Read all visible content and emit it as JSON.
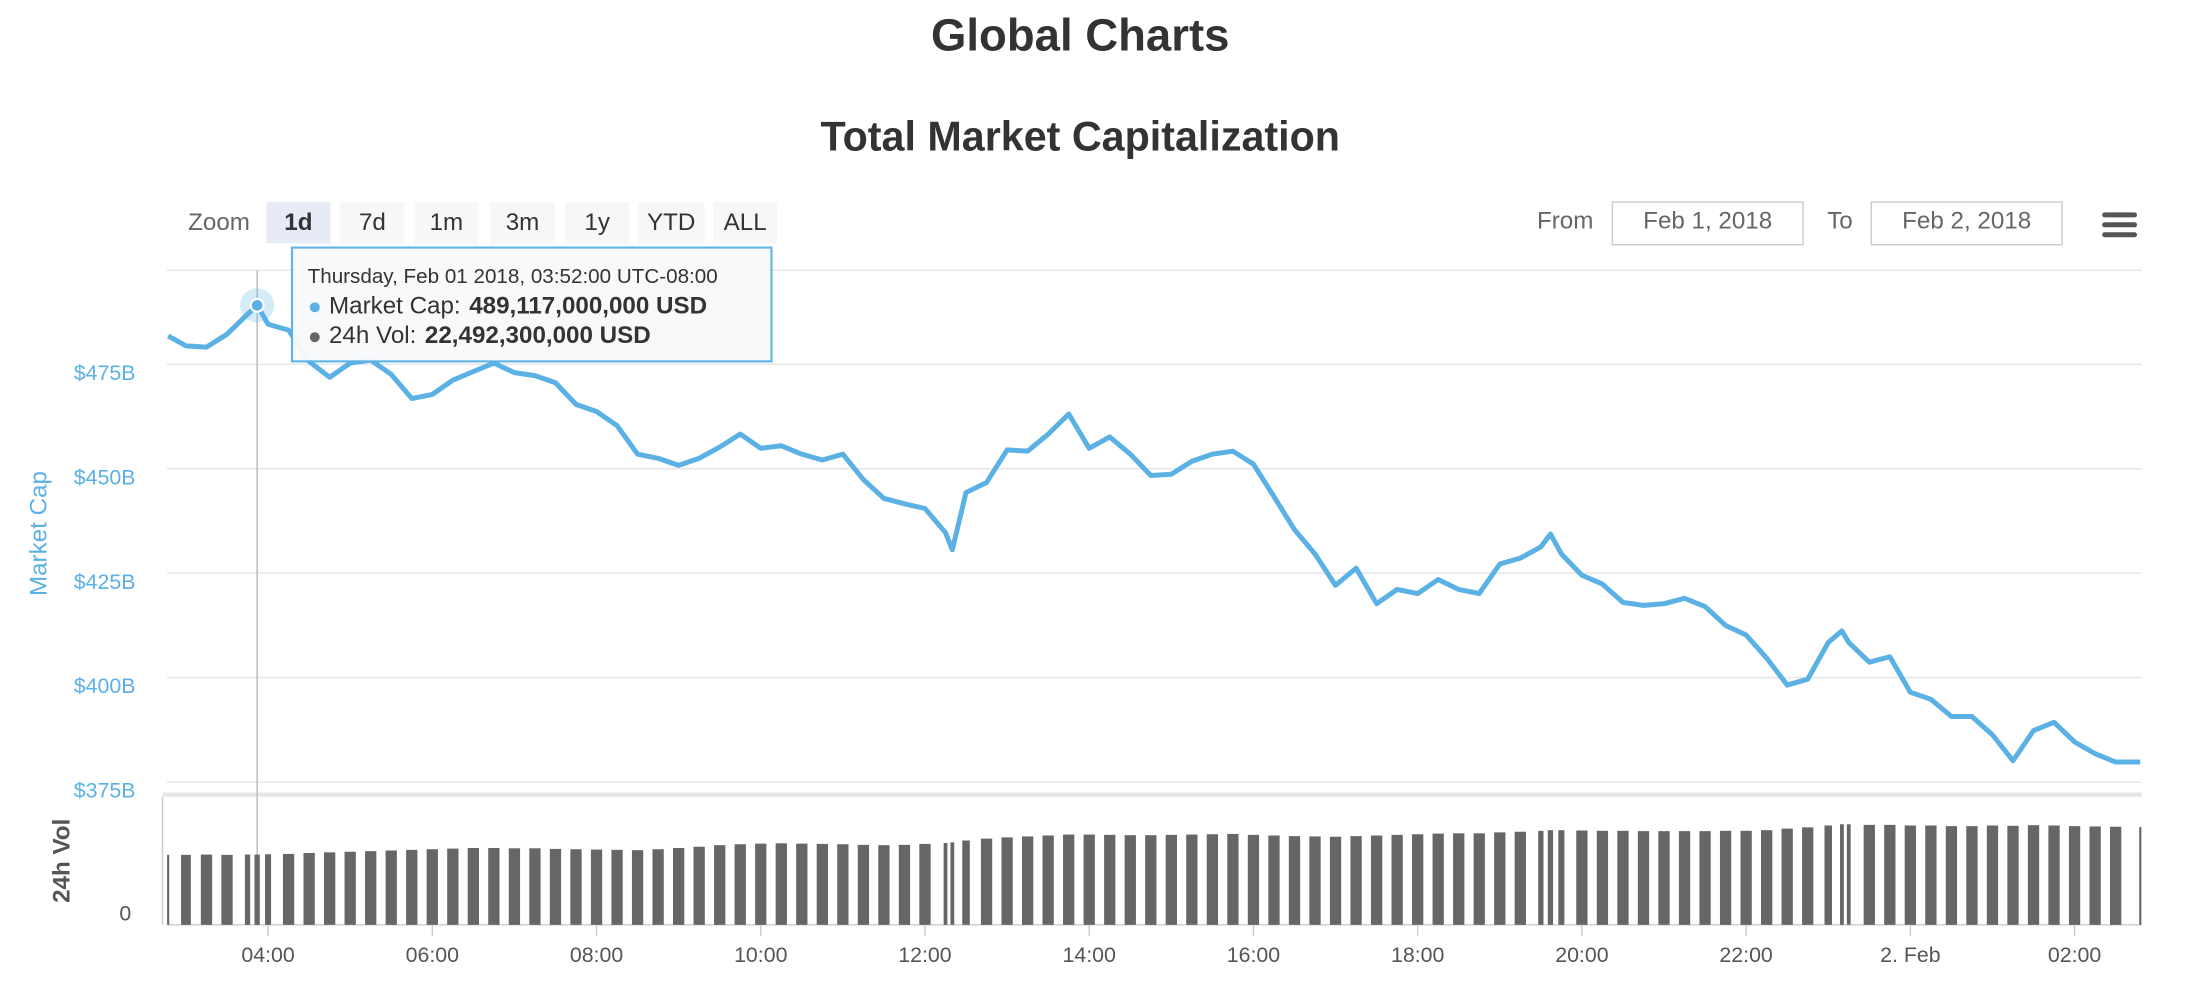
{
  "heading": "Global Charts",
  "controls": {
    "zoom_label": "Zoom",
    "zoom_buttons": [
      "1d",
      "7d",
      "1m",
      "3m",
      "1y",
      "YTD",
      "ALL"
    ],
    "active": "1d",
    "from_label": "From",
    "from": "Feb 1, 2018",
    "to_label": "To",
    "to": "Feb 2, 2018"
  },
  "tooltip": {
    "title": "Thursday, Feb 01 2018, 03:52:00 UTC-08:00",
    "rows": [
      {
        "label": "Market Cap:",
        "value": "489,117,000,000 USD"
      },
      {
        "label": "24h Vol:",
        "value": "22,492,300,000 USD"
      }
    ]
  },
  "chart_data": {
    "type": "line",
    "title": "Total Market Capitalization",
    "ylabel": "Market Cap",
    "y2label": "24h Vol",
    "x": [
      "2018-02-01T02:47",
      "2018-02-01T03:00",
      "2018-02-01T03:15",
      "2018-02-01T03:30",
      "2018-02-01T03:45",
      "2018-02-01T03:52",
      "2018-02-01T04:00",
      "2018-02-01T04:15",
      "2018-02-01T04:30",
      "2018-02-01T04:45",
      "2018-02-01T05:00",
      "2018-02-01T05:15",
      "2018-02-01T05:30",
      "2018-02-01T05:45",
      "2018-02-01T06:00",
      "2018-02-01T06:15",
      "2018-02-01T06:30",
      "2018-02-01T06:45",
      "2018-02-01T07:00",
      "2018-02-01T07:15",
      "2018-02-01T07:30",
      "2018-02-01T07:45",
      "2018-02-01T08:00",
      "2018-02-01T08:15",
      "2018-02-01T08:30",
      "2018-02-01T08:45",
      "2018-02-01T09:00",
      "2018-02-01T09:15",
      "2018-02-01T09:30",
      "2018-02-01T09:45",
      "2018-02-01T10:00",
      "2018-02-01T10:15",
      "2018-02-01T10:30",
      "2018-02-01T10:45",
      "2018-02-01T11:00",
      "2018-02-01T11:15",
      "2018-02-01T11:30",
      "2018-02-01T11:45",
      "2018-02-01T12:00",
      "2018-02-01T12:15",
      "2018-02-01T12:20",
      "2018-02-01T12:30",
      "2018-02-01T12:45",
      "2018-02-01T13:00",
      "2018-02-01T13:15",
      "2018-02-01T13:30",
      "2018-02-01T13:45",
      "2018-02-01T14:00",
      "2018-02-01T14:15",
      "2018-02-01T14:30",
      "2018-02-01T14:45",
      "2018-02-01T15:00",
      "2018-02-01T15:15",
      "2018-02-01T15:30",
      "2018-02-01T15:45",
      "2018-02-01T16:00",
      "2018-02-01T16:15",
      "2018-02-01T16:30",
      "2018-02-01T16:45",
      "2018-02-01T17:00",
      "2018-02-01T17:15",
      "2018-02-01T17:30",
      "2018-02-01T17:45",
      "2018-02-01T18:00",
      "2018-02-01T18:15",
      "2018-02-01T18:30",
      "2018-02-01T18:45",
      "2018-02-01T19:00",
      "2018-02-01T19:15",
      "2018-02-01T19:30",
      "2018-02-01T19:37",
      "2018-02-01T19:45",
      "2018-02-01T20:00",
      "2018-02-01T20:15",
      "2018-02-01T20:30",
      "2018-02-01T20:45",
      "2018-02-01T21:00",
      "2018-02-01T21:15",
      "2018-02-01T21:30",
      "2018-02-01T21:45",
      "2018-02-01T22:00",
      "2018-02-01T22:15",
      "2018-02-01T22:30",
      "2018-02-01T22:45",
      "2018-02-01T23:00",
      "2018-02-01T23:10",
      "2018-02-01T23:15",
      "2018-02-01T23:30",
      "2018-02-01T23:45",
      "2018-02-02T00:00",
      "2018-02-02T00:15",
      "2018-02-02T00:30",
      "2018-02-02T00:45",
      "2018-02-02T01:00",
      "2018-02-02T01:15",
      "2018-02-02T01:30",
      "2018-02-02T01:45",
      "2018-02-02T02:00",
      "2018-02-02T02:15",
      "2018-02-02T02:30",
      "2018-02-02T02:48"
    ],
    "series": [
      {
        "name": "Market Cap",
        "type": "line",
        "color": "#5bb1e4",
        "values": [
          481.8,
          479.4,
          479.1,
          482.2,
          487,
          489.117,
          484.6,
          483.2,
          475.7,
          471.9,
          475.3,
          476,
          472.6,
          466.8,
          467.8,
          471.2,
          473.3,
          475.3,
          473,
          472.3,
          470.6,
          465.4,
          463.7,
          460.3,
          453.5,
          452.5,
          450.8,
          452.5,
          455.2,
          458.3,
          454.9,
          455.5,
          453.5,
          452.1,
          453.5,
          447.4,
          442.9,
          441.6,
          440.5,
          434.7,
          430.6,
          444.3,
          446.7,
          454.5,
          454.2,
          458.3,
          463.1,
          454.9,
          457.6,
          453.5,
          448.4,
          448.7,
          451.8,
          453.5,
          454.2,
          451.1,
          443.3,
          435.4,
          429.6,
          422.1,
          426.2,
          417.7,
          421.1,
          420.1,
          423.5,
          421.1,
          420.1,
          427.2,
          428.6,
          431.3,
          434.4,
          429.6,
          424.5,
          422.4,
          418,
          417.3,
          417.7,
          419,
          417,
          412.5,
          410.2,
          404.7,
          398.2,
          399.6,
          408.4,
          411.2,
          408.4,
          403.7,
          405,
          396.5,
          394.8,
          390.7,
          390.7,
          386.3,
          380.1,
          387.3,
          389.3,
          384.6,
          381.8,
          379.8,
          379.8
        ]
      },
      {
        "name": "24h Vol",
        "type": "bar",
        "axis": "y2",
        "color": "#666666",
        "values": [
          22.4,
          22.4,
          22.5,
          22.4,
          22.5,
          22.4923,
          22.6,
          22.7,
          23,
          23.2,
          23.4,
          23.6,
          23.8,
          24,
          24.2,
          24.4,
          24.6,
          24.6,
          24.5,
          24.5,
          24.3,
          24.2,
          24.1,
          24,
          23.9,
          24.2,
          24.6,
          25,
          25.5,
          25.8,
          26,
          26.1,
          26,
          25.9,
          25.8,
          25.6,
          25.5,
          25.6,
          25.9,
          26.2,
          26.4,
          27,
          27.6,
          28,
          28.3,
          28.6,
          28.9,
          28.9,
          28.8,
          28.7,
          28.7,
          28.8,
          28.9,
          29,
          29.1,
          28.8,
          28.6,
          28.4,
          28.3,
          28.2,
          28.4,
          28.6,
          28.8,
          29,
          29.2,
          29.3,
          29.3,
          29.6,
          29.8,
          30.1,
          30.3,
          30.3,
          30.2,
          30.1,
          30.1,
          30,
          30,
          30,
          30,
          30.1,
          30.1,
          30.3,
          30.8,
          31.2,
          31.8,
          32.2,
          32.2,
          32,
          32,
          31.8,
          31.8,
          31.6,
          31.6,
          31.8,
          31.7,
          31.9,
          31.8,
          31.6,
          31.5,
          31.4,
          31.3
        ]
      }
    ],
    "xlim": [
      "2018-02-01T02:46",
      "2018-02-02T02:49"
    ],
    "xticks": [
      {
        "value": "2018-02-01T04:00",
        "label": "04:00"
      },
      {
        "value": "2018-02-01T06:00",
        "label": "06:00"
      },
      {
        "value": "2018-02-01T08:00",
        "label": "08:00"
      },
      {
        "value": "2018-02-01T10:00",
        "label": "10:00"
      },
      {
        "value": "2018-02-01T12:00",
        "label": "12:00"
      },
      {
        "value": "2018-02-01T14:00",
        "label": "14:00"
      },
      {
        "value": "2018-02-01T16:00",
        "label": "16:00"
      },
      {
        "value": "2018-02-01T18:00",
        "label": "18:00"
      },
      {
        "value": "2018-02-01T20:00",
        "label": "20:00"
      },
      {
        "value": "2018-02-01T22:00",
        "label": "22:00"
      },
      {
        "value": "2018-02-02T00:00",
        "label": "2. Feb"
      },
      {
        "value": "2018-02-02T02:00",
        "label": "02:00"
      }
    ],
    "ylim": [
      372.5,
      497.5
    ],
    "yticks": [
      {
        "value": 375,
        "label": "$375B"
      },
      {
        "value": 400,
        "label": "$400B"
      },
      {
        "value": 425,
        "label": "$425B"
      },
      {
        "value": 450,
        "label": "$450B"
      },
      {
        "value": 475,
        "label": "$475B"
      }
    ],
    "y2lim": [
      0,
      41
    ],
    "y2ticks": [
      0
    ],
    "grid": true
  }
}
